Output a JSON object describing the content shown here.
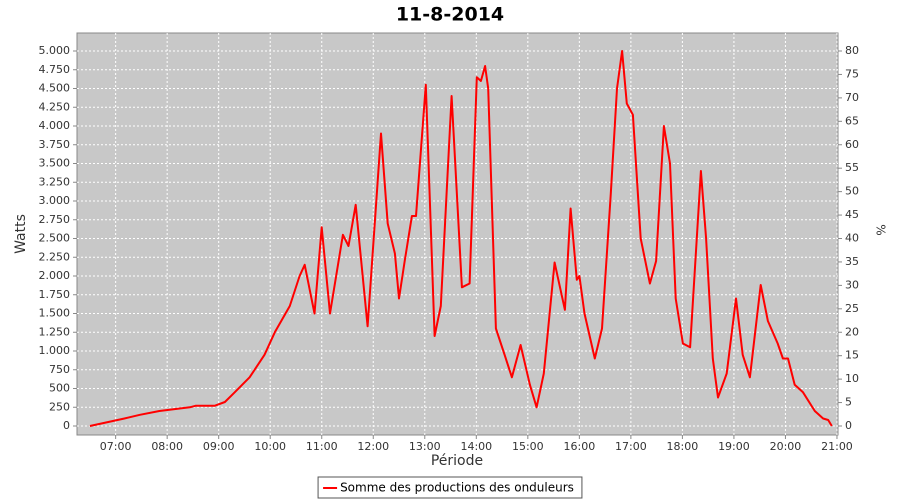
{
  "chart_data": {
    "type": "line",
    "title": "11-8-2014",
    "x_label": "Période",
    "y_label": "Watts",
    "y2_label": "%",
    "x": [
      6.5,
      7.17,
      7.47,
      7.85,
      8.44,
      8.55,
      8.92,
      9.12,
      9.31,
      9.6,
      9.89,
      10.09,
      10.38,
      10.57,
      10.67,
      10.86,
      11.0,
      11.16,
      11.41,
      11.52,
      11.66,
      11.89,
      12.15,
      12.28,
      12.42,
      12.5,
      12.61,
      12.75,
      12.83,
      13.02,
      13.19,
      13.31,
      13.52,
      13.72,
      13.87,
      14.01,
      14.09,
      14.17,
      14.23,
      14.38,
      14.55,
      14.69,
      14.86,
      15.04,
      15.17,
      15.31,
      15.52,
      15.72,
      15.83,
      15.95,
      16.0,
      16.1,
      16.3,
      16.44,
      16.61,
      16.73,
      16.83,
      16.92,
      17.04,
      17.19,
      17.37,
      17.49,
      17.64,
      17.76,
      17.87,
      18.01,
      18.15,
      18.36,
      18.46,
      18.59,
      18.69,
      18.86,
      19.04,
      19.17,
      19.31,
      19.52,
      19.66,
      19.85,
      19.95,
      20.05,
      20.18,
      20.34,
      20.57,
      20.73,
      20.83,
      20.9
    ],
    "series": [
      {
        "name": "Somme des productions des onduleurs",
        "color": "#ff0000",
        "values": [
          0,
          100,
          150,
          200,
          250,
          270,
          270,
          320,
          450,
          650,
          950,
          1250,
          1600,
          2000,
          2150,
          1500,
          2650,
          1500,
          2550,
          2400,
          2950,
          1330,
          3900,
          2700,
          2300,
          1700,
          2200,
          2800,
          2800,
          4550,
          1200,
          1600,
          4400,
          1850,
          1900,
          4650,
          4600,
          4800,
          4500,
          1300,
          950,
          650,
          1080,
          550,
          250,
          700,
          2180,
          1550,
          2900,
          1950,
          2000,
          1500,
          900,
          1300,
          3100,
          4500,
          5000,
          4300,
          4150,
          2500,
          1900,
          2200,
          4000,
          3500,
          1700,
          1100,
          1050,
          3400,
          2500,
          900,
          380,
          700,
          1700,
          950,
          650,
          1880,
          1400,
          1100,
          900,
          900,
          550,
          450,
          200,
          100,
          80,
          0
        ]
      }
    ],
    "xlim": [
      6.25,
      21.02
    ],
    "xticks": [
      {
        "value": 7,
        "label": "07:00"
      },
      {
        "value": 8,
        "label": "08:00"
      },
      {
        "value": 9,
        "label": "09:00"
      },
      {
        "value": 10,
        "label": "10:00"
      },
      {
        "value": 11,
        "label": "11:00"
      },
      {
        "value": 12,
        "label": "12:00"
      },
      {
        "value": 13,
        "label": "13:00"
      },
      {
        "value": 14,
        "label": "14:00"
      },
      {
        "value": 15,
        "label": "15:00"
      },
      {
        "value": 16,
        "label": "16:00"
      },
      {
        "value": 17,
        "label": "17:00"
      },
      {
        "value": 18,
        "label": "18:00"
      },
      {
        "value": 19,
        "label": "19:00"
      },
      {
        "value": 20,
        "label": "20:00"
      },
      {
        "value": 21,
        "label": "21:00"
      }
    ],
    "ylim": [
      -120,
      5240
    ],
    "yticks": [
      0,
      250,
      500,
      750,
      {
        "value": 1000,
        "label": "1.000"
      },
      {
        "value": 1250,
        "label": "1.250"
      },
      {
        "value": 1500,
        "label": "1.500"
      },
      {
        "value": 1750,
        "label": "1.750"
      },
      {
        "value": 2000,
        "label": "2.000"
      },
      {
        "value": 2250,
        "label": "2.250"
      },
      {
        "value": 2500,
        "label": "2.500"
      },
      {
        "value": 2750,
        "label": "2.750"
      },
      {
        "value": 3000,
        "label": "3.000"
      },
      {
        "value": 3250,
        "label": "3.250"
      },
      {
        "value": 3500,
        "label": "3.500"
      },
      {
        "value": 3750,
        "label": "3.750"
      },
      {
        "value": 4000,
        "label": "4.000"
      },
      {
        "value": 4250,
        "label": "4.250"
      },
      {
        "value": 4500,
        "label": "4.500"
      },
      {
        "value": 4750,
        "label": "4.750"
      },
      {
        "value": 5000,
        "label": "5.000"
      }
    ],
    "y2lim": [
      -1.92,
      83.84
    ],
    "y2ticks": [
      0,
      5,
      10,
      15,
      20,
      25,
      30,
      35,
      40,
      45,
      50,
      55,
      60,
      65,
      70,
      75,
      80
    ],
    "grid": true,
    "plot_background": "#c8c8c8",
    "legend": "bottom"
  }
}
